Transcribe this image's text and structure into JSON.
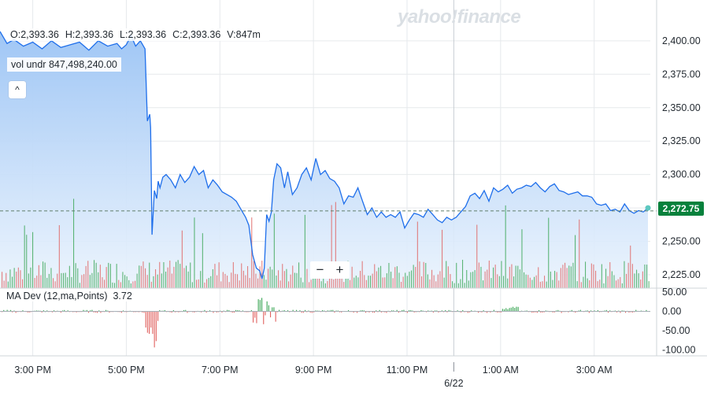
{
  "watermark": "yahoo!finance",
  "ohlc": {
    "open": "O:2,393.36",
    "high": "H:2,393.36",
    "low": "L:2,393.36",
    "close": "C:2,393.36",
    "volume": "V:847m"
  },
  "volume_readout": {
    "label": "vol undr",
    "value": "847,498,240.00"
  },
  "controls": {
    "collapse": "^",
    "zoom_out": "−",
    "zoom_in": "+"
  },
  "study": {
    "label": "MA Dev (12,ma,Points)",
    "value": "3.72"
  },
  "current_price": "2,272.75",
  "colors": {
    "line": "#1f6feb",
    "area_top": "#9fc6f5",
    "area_bottom": "#eaf3fd",
    "up": "#3aa655",
    "down": "#e0615f",
    "price_tag": "#07813c",
    "axis_text": "#232a31",
    "grid": "#e6e9ec"
  },
  "chart_data": [
    {
      "type": "area",
      "ylim": [
        2215,
        2427
      ],
      "y_ticks": [
        "2,225.00",
        "2,250.00",
        "2,275.00",
        "2,300.00",
        "2,325.00",
        "2,350.00",
        "2,375.00",
        "2,400.00"
      ],
      "y_tick_values": [
        2225,
        2250,
        2275,
        2300,
        2325,
        2350,
        2375,
        2400
      ],
      "x_ticks": [
        "3:00 PM",
        "5:00 PM",
        "7:00 PM",
        "9:00 PM",
        "11:00 PM",
        "1:00 AM",
        "3:00 AM"
      ],
      "x_tick_hours": [
        15,
        17,
        19,
        21,
        23,
        25,
        27
      ],
      "date_marker": {
        "label": "6/22",
        "hour": 24
      },
      "xlim_hours": [
        14.3,
        28.2
      ],
      "last_price": 2272.75,
      "series": [
        {
          "x_hours": [
            14.3,
            14.45,
            14.6,
            14.8,
            15.0,
            15.2,
            15.4,
            15.6,
            15.8,
            16.0,
            16.2,
            16.4,
            16.6,
            16.8,
            16.9,
            17.0,
            17.1,
            17.2,
            17.3,
            17.4,
            17.45,
            17.5,
            17.52,
            17.55,
            17.6,
            17.65,
            17.68,
            17.72,
            17.78,
            17.85,
            17.95,
            18.05,
            18.15,
            18.25,
            18.35,
            18.45,
            18.55,
            18.65,
            18.75,
            18.85,
            18.95,
            19.05,
            19.15,
            19.25,
            19.35,
            19.45,
            19.55,
            19.62,
            19.7,
            19.78,
            19.85,
            19.9,
            19.95,
            20.0,
            20.05,
            20.1,
            20.15,
            20.22,
            20.3,
            20.38,
            20.45,
            20.55,
            20.65,
            20.75,
            20.85,
            20.95,
            21.05,
            21.15,
            21.25,
            21.35,
            21.45,
            21.55,
            21.65,
            21.75,
            21.85,
            21.95,
            22.05,
            22.15,
            22.25,
            22.35,
            22.45,
            22.55,
            22.65,
            22.75,
            22.85,
            22.95,
            23.05,
            23.15,
            23.25,
            23.35,
            23.45,
            23.55,
            23.65,
            23.75,
            23.85,
            23.95,
            24.05,
            24.15,
            24.25,
            24.35,
            24.45,
            24.55,
            24.65,
            24.75,
            24.85,
            24.95,
            25.05,
            25.15,
            25.25,
            25.35,
            25.45,
            25.55,
            25.65,
            25.75,
            25.85,
            25.95,
            26.05,
            26.15,
            26.25,
            26.35,
            26.45,
            26.55,
            26.65,
            26.75,
            26.85,
            26.95,
            27.05,
            27.15,
            27.25,
            27.35,
            27.45,
            27.55,
            27.65,
            27.75,
            27.85,
            27.95,
            28.05,
            28.15
          ],
          "values": [
            2407,
            2398,
            2401,
            2396,
            2399,
            2394,
            2400,
            2395,
            2397,
            2399,
            2393,
            2400,
            2396,
            2398,
            2394,
            2397,
            2404,
            2396,
            2400,
            2394,
            2340,
            2345,
            2335,
            2255,
            2288,
            2282,
            2295,
            2290,
            2298,
            2300,
            2296,
            2290,
            2300,
            2294,
            2298,
            2306,
            2300,
            2303,
            2290,
            2296,
            2292,
            2287,
            2285,
            2283,
            2280,
            2274,
            2268,
            2262,
            2240,
            2230,
            2228,
            2222,
            2230,
            2270,
            2265,
            2272,
            2296,
            2308,
            2305,
            2290,
            2302,
            2285,
            2290,
            2300,
            2305,
            2296,
            2312,
            2300,
            2303,
            2297,
            2295,
            2290,
            2278,
            2284,
            2283,
            2290,
            2280,
            2270,
            2275,
            2268,
            2272,
            2268,
            2270,
            2268,
            2272,
            2260,
            2266,
            2271,
            2270,
            2268,
            2274,
            2270,
            2266,
            2264,
            2268,
            2266,
            2268,
            2272,
            2276,
            2284,
            2286,
            2282,
            2288,
            2280,
            2290,
            2287,
            2289,
            2292,
            2286,
            2289,
            2290,
            2292,
            2291,
            2294,
            2290,
            2287,
            2291,
            2293,
            2288,
            2287,
            2285,
            2286,
            2287,
            2284,
            2284,
            2283,
            2278,
            2277,
            2278,
            2273,
            2274,
            2272,
            2278,
            2273,
            2271,
            2273,
            2272,
            2275
          ]
        }
      ]
    },
    {
      "type": "bar",
      "name": "volume",
      "colors_by_direction": true
    },
    {
      "type": "bar",
      "label": "MA Dev (12,ma,Points)",
      "ylim": [
        -115,
        60
      ],
      "y_ticks": [
        "50.00",
        "0.00",
        "-50.00",
        "-100.00"
      ],
      "y_tick_values": [
        50,
        0,
        -50,
        -100
      ],
      "current_value": 3.72
    }
  ]
}
